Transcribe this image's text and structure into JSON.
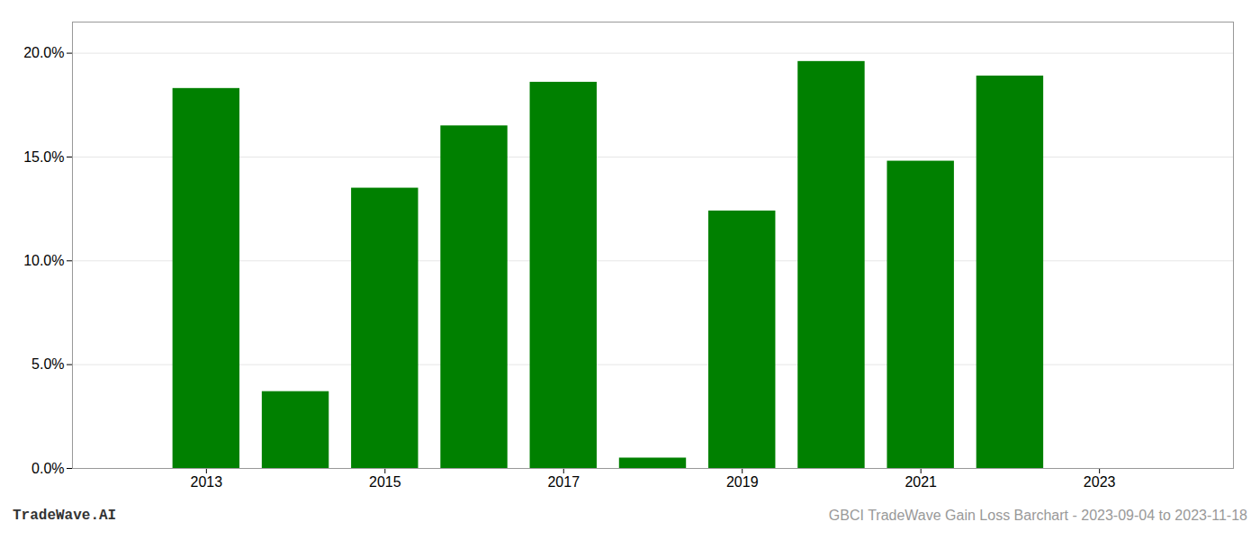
{
  "chart_data": {
    "type": "bar",
    "x": [
      2013,
      2014,
      2015,
      2016,
      2017,
      2018,
      2019,
      2020,
      2021,
      2022
    ],
    "values": [
      0.183,
      0.037,
      0.135,
      0.165,
      0.186,
      0.005,
      0.124,
      0.196,
      0.148,
      0.189
    ],
    "color": "#008000",
    "xlim": [
      2011.5,
      2024.5
    ],
    "ylim": [
      0.0,
      0.215
    ],
    "xticks": [
      2013,
      2015,
      2017,
      2019,
      2021,
      2023
    ],
    "yticks": [
      {
        "value": 0.0,
        "label": "0.0%"
      },
      {
        "value": 0.05,
        "label": "5.0%"
      },
      {
        "value": 0.1,
        "label": "10.0%"
      },
      {
        "value": 0.15,
        "label": "15.0%"
      },
      {
        "value": 0.2,
        "label": "20.0%"
      }
    ],
    "grid": true,
    "annotations": [
      "TradeWave.AI",
      "GBCI TradeWave Gain Loss Barchart - 2023-09-04 to 2023-11-18"
    ]
  }
}
